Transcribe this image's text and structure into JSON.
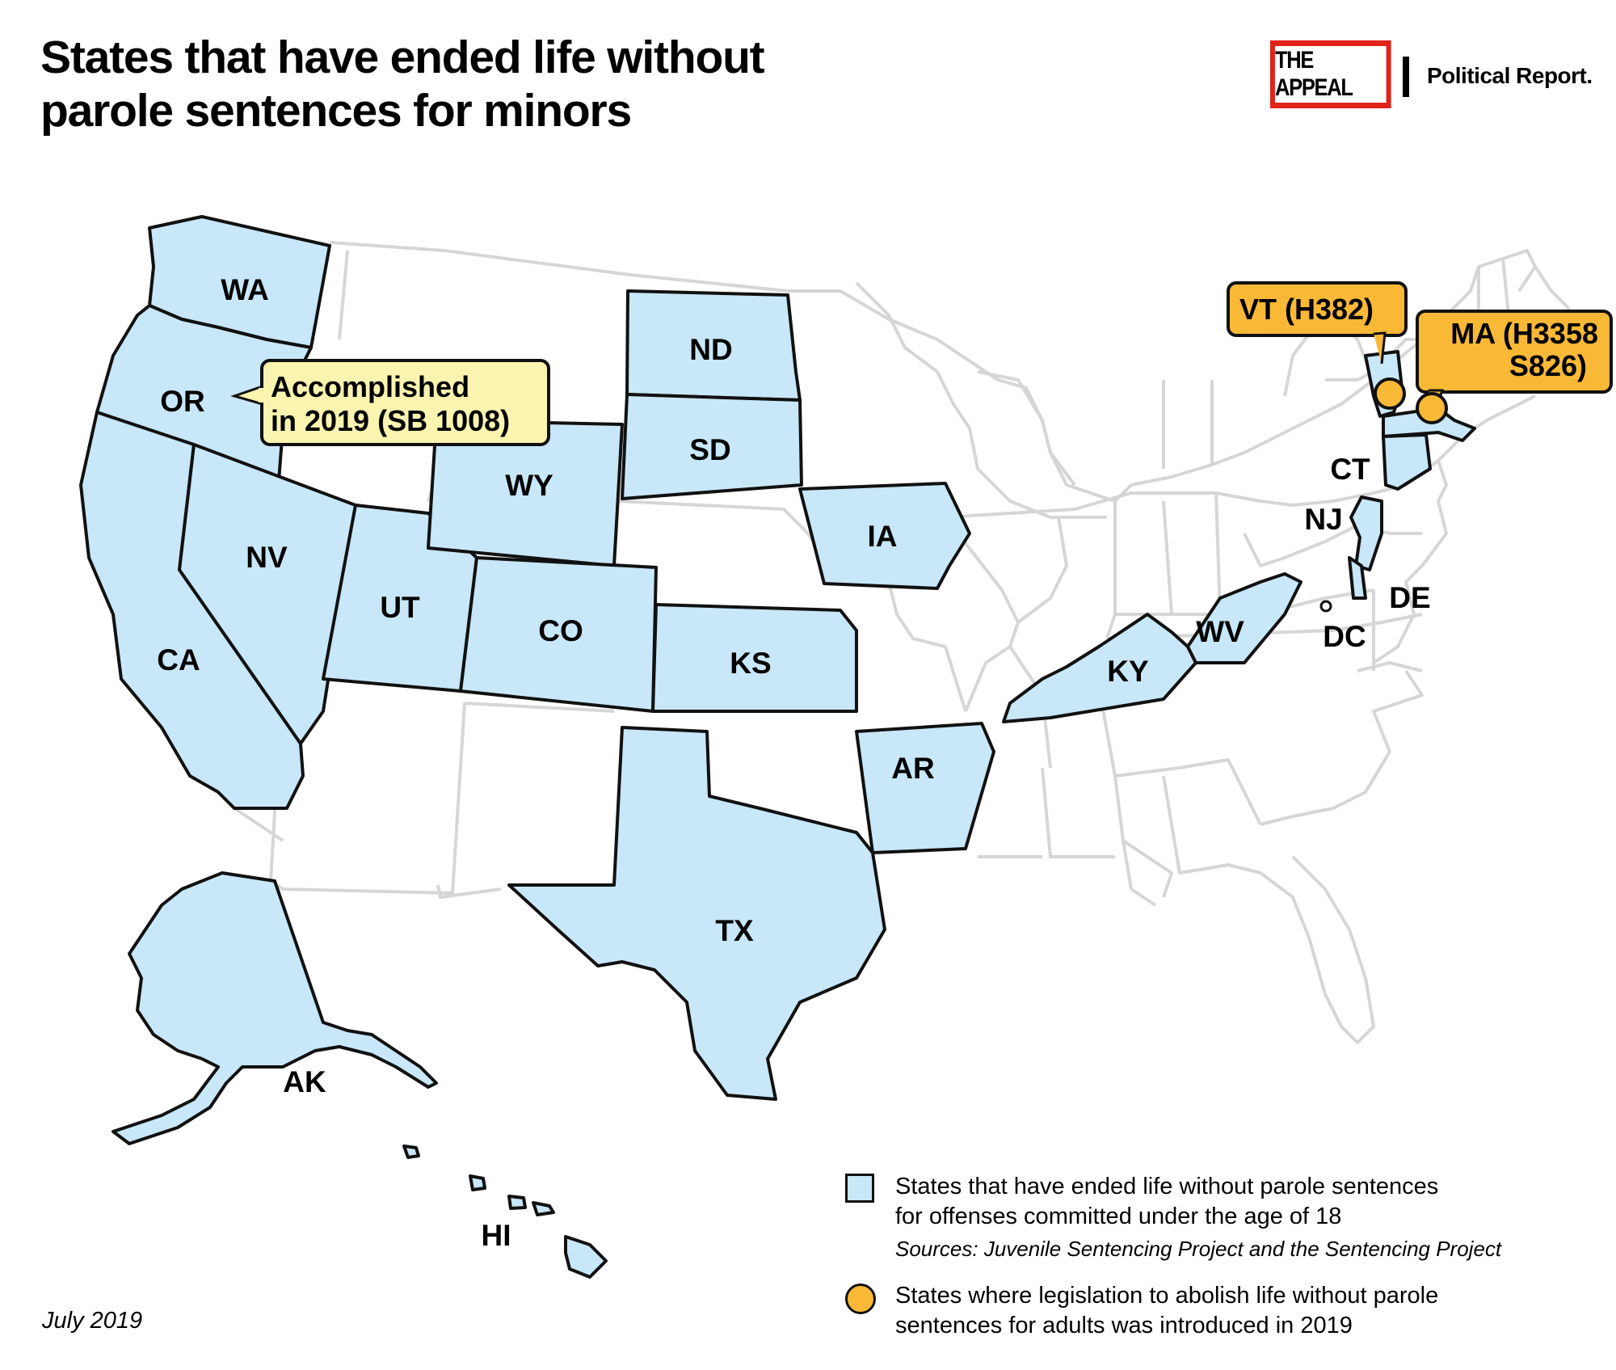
{
  "title_line1": "States that have ended life without",
  "title_line2": "parole sentences for minors",
  "brand": {
    "logo_text": "THE APPEAL",
    "sub": "Political Report."
  },
  "colors": {
    "state_fill": "#c8e7f8",
    "callout_yellow": "#faf4b0",
    "marker_orange": "#f9b937",
    "background_lines": "#d6d6d6",
    "brand_red": "#e2231a"
  },
  "states": [
    "WA",
    "OR",
    "CA",
    "NV",
    "ND",
    "SD",
    "WY",
    "UT",
    "CO",
    "KS",
    "IA",
    "AR",
    "TX",
    "KY",
    "WV",
    "CT",
    "NJ",
    "DE",
    "DC",
    "AK",
    "HI"
  ],
  "callouts": {
    "oregon_line1": "Accomplished",
    "oregon_line2": "in 2019 (SB 1008)",
    "vt": "VT (H382)",
    "ma_line1": "MA (H3358",
    "ma_line2": "S826)"
  },
  "legend": {
    "square_line1": "States that have ended life without parole sentences",
    "square_line2": "for offenses committed under the age of 18",
    "sources": "Sources: Juvenile Sentencing Project and the Sentencing Project",
    "dot_line1": "States where legislation to abolish life without parole",
    "dot_line2": "sentences for adults was introduced in 2019"
  },
  "date": "July 2019"
}
